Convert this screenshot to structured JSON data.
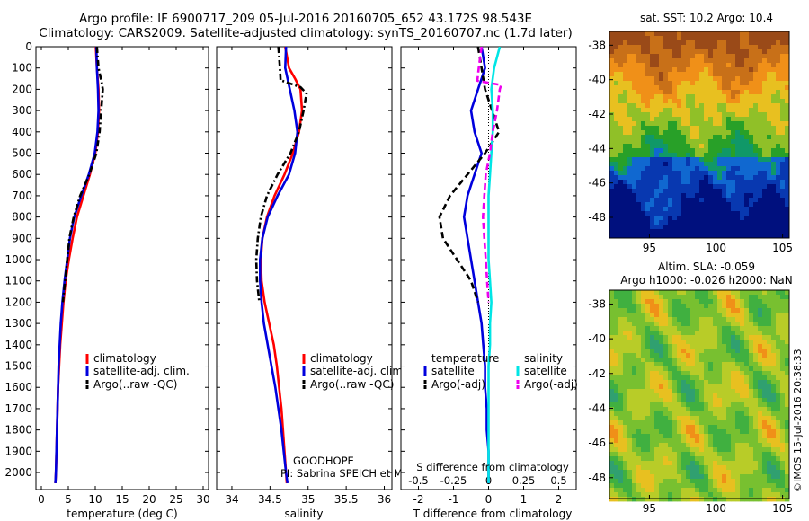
{
  "header": {
    "title_line1": "Argo profile: IF 6900717_209 05-Jul-2016 20160705_652 43.172S 98.543E",
    "title_line2": "Climatology: CARS2009. Satellite-adjusted climatology: synTS_20160707.nc (1.7d later)"
  },
  "colors": {
    "climatology": "#ff0000",
    "satellite": "#0000dd",
    "argo": "#000000",
    "sat_salinity": "#00e5e5",
    "argo_salinity_adj": "#ee00ee"
  },
  "depth_axis": {
    "ylim": [
      0,
      2080
    ],
    "ticks": [
      0,
      100,
      200,
      300,
      400,
      500,
      600,
      700,
      800,
      900,
      1000,
      1100,
      1200,
      1300,
      1400,
      1500,
      1600,
      1700,
      1800,
      1900,
      2000
    ]
  },
  "chart_data": [
    {
      "type": "line",
      "id": "temperature",
      "xlabel": "temperature (deg C)",
      "xlim": [
        -1,
        31
      ],
      "xticks": [
        0,
        5,
        10,
        15,
        20,
        25,
        30
      ],
      "legend": [
        "climatology",
        "satellite-adj. clim.",
        "Argo(..raw -QC)"
      ],
      "series": [
        {
          "name": "climatology",
          "color": "#ff0000",
          "style": "solid",
          "points": [
            [
              10.1,
              0
            ],
            [
              10.3,
              100
            ],
            [
              10.6,
              200
            ],
            [
              10.7,
              300
            ],
            [
              10.5,
              400
            ],
            [
              10.0,
              500
            ],
            [
              9.0,
              600
            ],
            [
              7.8,
              700
            ],
            [
              6.6,
              800
            ],
            [
              5.8,
              900
            ],
            [
              5.1,
              1000
            ],
            [
              4.5,
              1100
            ],
            [
              4.1,
              1200
            ],
            [
              3.8,
              1300
            ],
            [
              3.5,
              1400
            ],
            [
              3.3,
              1500
            ],
            [
              3.1,
              1600
            ],
            [
              3.0,
              1700
            ],
            [
              2.9,
              1800
            ],
            [
              2.8,
              1900
            ],
            [
              2.7,
              2000
            ],
            [
              2.6,
              2050
            ]
          ]
        },
        {
          "name": "satellite-adj. clim.",
          "color": "#0000dd",
          "style": "solid",
          "points": [
            [
              10.2,
              0
            ],
            [
              10.3,
              100
            ],
            [
              10.5,
              200
            ],
            [
              10.6,
              300
            ],
            [
              10.4,
              400
            ],
            [
              9.9,
              500
            ],
            [
              8.8,
              600
            ],
            [
              7.4,
              700
            ],
            [
              6.1,
              800
            ],
            [
              5.3,
              900
            ],
            [
              4.8,
              1000
            ],
            [
              4.3,
              1100
            ],
            [
              3.9,
              1200
            ],
            [
              3.6,
              1300
            ],
            [
              3.4,
              1400
            ],
            [
              3.2,
              1500
            ],
            [
              3.1,
              1600
            ],
            [
              3.0,
              1700
            ],
            [
              2.9,
              1800
            ],
            [
              2.8,
              1900
            ],
            [
              2.7,
              2000
            ],
            [
              2.6,
              2050
            ]
          ]
        },
        {
          "name": "Argo(..raw -QC)",
          "color": "#000000",
          "style": "dashdot",
          "points": [
            [
              10.3,
              0
            ],
            [
              10.6,
              100
            ],
            [
              11.2,
              170
            ],
            [
              11.4,
              200
            ],
            [
              11.1,
              300
            ],
            [
              10.8,
              400
            ],
            [
              10.2,
              500
            ],
            [
              8.9,
              600
            ],
            [
              7.2,
              700
            ],
            [
              6.0,
              800
            ],
            [
              5.2,
              900
            ],
            [
              4.8,
              1000
            ],
            [
              4.4,
              1100
            ],
            [
              4.0,
              1200
            ]
          ]
        }
      ]
    },
    {
      "type": "line",
      "id": "salinity",
      "xlabel": "salinity",
      "xlim": [
        33.8,
        36.1
      ],
      "xticks": [
        34,
        34.5,
        35,
        35.5,
        36
      ],
      "legend": [
        "climatology",
        "satellite-adj. clim.",
        "Argo(..raw -QC)"
      ],
      "annotations": [
        "GOODHOPE",
        "PI: Sabrina SPEICH et Michel ARHAN"
      ],
      "series": [
        {
          "name": "climatology",
          "color": "#ff0000",
          "style": "solid",
          "points": [
            [
              34.7,
              0
            ],
            [
              34.75,
              100
            ],
            [
              34.83,
              150
            ],
            [
              34.9,
              200
            ],
            [
              34.92,
              300
            ],
            [
              34.88,
              400
            ],
            [
              34.8,
              500
            ],
            [
              34.69,
              600
            ],
            [
              34.56,
              700
            ],
            [
              34.46,
              800
            ],
            [
              34.4,
              900
            ],
            [
              34.38,
              1000
            ],
            [
              34.39,
              1100
            ],
            [
              34.43,
              1200
            ],
            [
              34.49,
              1300
            ],
            [
              34.55,
              1400
            ],
            [
              34.59,
              1500
            ],
            [
              34.62,
              1600
            ],
            [
              34.65,
              1700
            ],
            [
              34.67,
              1800
            ],
            [
              34.69,
              1900
            ],
            [
              34.71,
              2000
            ],
            [
              34.72,
              2050
            ]
          ]
        },
        {
          "name": "satellite-adj. clim.",
          "color": "#0000dd",
          "style": "solid",
          "points": [
            [
              34.71,
              0
            ],
            [
              34.7,
              100
            ],
            [
              34.76,
              200
            ],
            [
              34.82,
              300
            ],
            [
              34.86,
              400
            ],
            [
              34.83,
              500
            ],
            [
              34.75,
              600
            ],
            [
              34.6,
              700
            ],
            [
              34.47,
              800
            ],
            [
              34.4,
              900
            ],
            [
              34.37,
              1000
            ],
            [
              34.37,
              1100
            ],
            [
              34.39,
              1200
            ],
            [
              34.42,
              1300
            ],
            [
              34.47,
              1400
            ],
            [
              34.52,
              1500
            ],
            [
              34.57,
              1600
            ],
            [
              34.61,
              1700
            ],
            [
              34.65,
              1800
            ],
            [
              34.68,
              1900
            ],
            [
              34.71,
              2000
            ],
            [
              34.73,
              2050
            ]
          ]
        },
        {
          "name": "Argo(..raw -QC)",
          "color": "#000000",
          "style": "dashdot",
          "points": [
            [
              34.61,
              0
            ],
            [
              34.63,
              100
            ],
            [
              34.64,
              160
            ],
            [
              34.66,
              160
            ],
            [
              34.9,
              190
            ],
            [
              34.98,
              220
            ],
            [
              34.94,
              300
            ],
            [
              34.88,
              400
            ],
            [
              34.77,
              500
            ],
            [
              34.6,
              600
            ],
            [
              34.46,
              700
            ],
            [
              34.38,
              800
            ],
            [
              34.34,
              900
            ],
            [
              34.32,
              1000
            ],
            [
              34.33,
              1100
            ],
            [
              34.36,
              1200
            ]
          ]
        }
      ]
    },
    {
      "type": "line",
      "id": "difference",
      "xlabel": "T difference from climatology",
      "xlabel_top": "S difference from climatology",
      "xlim": [
        -2.5,
        2.5
      ],
      "xticks": [
        -2,
        -1,
        0,
        1,
        2
      ],
      "s_xlim": [
        -0.625,
        0.625
      ],
      "s_xticks": [
        -0.5,
        -0.25,
        0,
        0.25,
        0.5
      ],
      "legend_groups": [
        {
          "heading": "temperature",
          "items": [
            "satellite",
            "Argo(-adj)"
          ]
        },
        {
          "heading": "salinity",
          "items": [
            "satellite",
            "Argo(-adj)"
          ]
        }
      ],
      "series": [
        {
          "name": "temperature satellite",
          "color": "#0000dd",
          "style": "solid",
          "axis": "T",
          "points": [
            [
              -0.2,
              0
            ],
            [
              -0.1,
              100
            ],
            [
              -0.3,
              200
            ],
            [
              -0.5,
              300
            ],
            [
              -0.4,
              400
            ],
            [
              -0.2,
              500
            ],
            [
              -0.4,
              600
            ],
            [
              -0.6,
              700
            ],
            [
              -0.7,
              800
            ],
            [
              -0.6,
              900
            ],
            [
              -0.5,
              1000
            ],
            [
              -0.4,
              1100
            ],
            [
              -0.3,
              1200
            ],
            [
              -0.2,
              1300
            ],
            [
              -0.15,
              1400
            ],
            [
              -0.1,
              1500
            ],
            [
              -0.1,
              1600
            ],
            [
              -0.05,
              1700
            ],
            [
              -0.05,
              1800
            ],
            [
              0,
              1900
            ],
            [
              0,
              2000
            ],
            [
              0,
              2050
            ]
          ]
        },
        {
          "name": "temperature Argo(-adj)",
          "color": "#000000",
          "style": "dash",
          "axis": "T",
          "points": [
            [
              -0.3,
              0
            ],
            [
              -0.2,
              100
            ],
            [
              -0.1,
              200
            ],
            [
              0.1,
              300
            ],
            [
              0.3,
              400
            ],
            [
              -0.1,
              500
            ],
            [
              -0.6,
              600
            ],
            [
              -1.1,
              700
            ],
            [
              -1.4,
              800
            ],
            [
              -1.3,
              900
            ],
            [
              -0.9,
              1000
            ],
            [
              -0.5,
              1100
            ],
            [
              -0.3,
              1200
            ]
          ]
        },
        {
          "name": "salinity satellite",
          "color": "#00e5e5",
          "style": "solid",
          "axis": "S",
          "points": [
            [
              0.08,
              0
            ],
            [
              0.04,
              100
            ],
            [
              0.02,
              200
            ],
            [
              0.03,
              300
            ],
            [
              0.03,
              400
            ],
            [
              0.02,
              500
            ],
            [
              0.01,
              600
            ],
            [
              0.0,
              700
            ],
            [
              0.0,
              800
            ],
            [
              0.0,
              900
            ],
            [
              0.0,
              1000
            ],
            [
              0.01,
              1100
            ],
            [
              0.02,
              1200
            ],
            [
              0.01,
              1300
            ],
            [
              0.01,
              1400
            ],
            [
              0.0,
              1500
            ],
            [
              0.0,
              1600
            ],
            [
              0.0,
              1700
            ],
            [
              0.0,
              1800
            ],
            [
              0.0,
              1900
            ],
            [
              0.0,
              2000
            ],
            [
              0.0,
              2050
            ]
          ]
        },
        {
          "name": "salinity Argo(-adj)",
          "color": "#ee00ee",
          "style": "dash",
          "axis": "S",
          "points": [
            [
              -0.05,
              0
            ],
            [
              -0.07,
              100
            ],
            [
              -0.08,
              160
            ],
            [
              0.09,
              180
            ],
            [
              0.08,
              200
            ],
            [
              0.06,
              300
            ],
            [
              0.03,
              400
            ],
            [
              0.01,
              500
            ],
            [
              -0.02,
              600
            ],
            [
              -0.03,
              700
            ],
            [
              -0.04,
              800
            ],
            [
              -0.03,
              900
            ],
            [
              -0.02,
              1000
            ],
            [
              -0.01,
              1100
            ],
            [
              0.0,
              1200
            ]
          ]
        }
      ]
    },
    {
      "type": "heatmap",
      "id": "sst_map",
      "title": "sat. SST: 10.2 Argo: 10.4",
      "xlim": [
        92,
        105.5
      ],
      "ylim": [
        -49.2,
        -37.2
      ],
      "xticks": [
        95,
        100,
        105
      ],
      "yticks": [
        -38,
        -40,
        -42,
        -44,
        -46,
        -48
      ],
      "palette": [
        "#9a4a18",
        "#c87018",
        "#f09018",
        "#e8c020",
        "#90c028",
        "#28a028",
        "#109868",
        "#1068d0",
        "#0838b0",
        "#00107e"
      ]
    },
    {
      "type": "heatmap",
      "id": "sla_map",
      "title_line1": "Altim. SLA: -0.059",
      "title_line2": "Argo h1000: -0.026 h2000: NaN",
      "xlim": [
        92,
        105.5
      ],
      "ylim": [
        -49.2,
        -37.2
      ],
      "xticks": [
        95,
        100,
        105
      ],
      "yticks": [
        -38,
        -40,
        -42,
        -44,
        -46,
        -48
      ],
      "palette": [
        "#f09018",
        "#e8c020",
        "#b8cc28",
        "#78c030",
        "#40b040",
        "#30a070"
      ]
    }
  ],
  "footer": {
    "stamp": "©IMOS 15-Jul-2016 20:38:33"
  }
}
